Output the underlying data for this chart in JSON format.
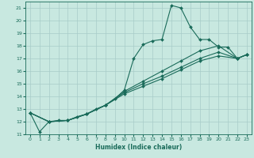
{
  "xlabel": "Humidex (Indice chaleur)",
  "background_color": "#c8e8e0",
  "grid_color": "#a8ccc8",
  "line_color": "#1a6b5a",
  "xlim": [
    -0.5,
    23.5
  ],
  "ylim": [
    11,
    21.5
  ],
  "yticks": [
    11,
    12,
    13,
    14,
    15,
    16,
    17,
    18,
    19,
    20,
    21
  ],
  "xticks": [
    0,
    1,
    2,
    3,
    4,
    5,
    6,
    7,
    8,
    9,
    10,
    11,
    12,
    13,
    14,
    15,
    16,
    17,
    18,
    19,
    20,
    21,
    22,
    23
  ],
  "series": [
    {
      "x": [
        0,
        1,
        2,
        3,
        4,
        5,
        6,
        7,
        8,
        9,
        10,
        11,
        12,
        13,
        14,
        15,
        16,
        17,
        18,
        19,
        20,
        21,
        22,
        23
      ],
      "y": [
        12.7,
        11.2,
        12.0,
        12.1,
        12.1,
        12.4,
        12.6,
        13.0,
        13.3,
        13.8,
        14.5,
        17.0,
        18.1,
        18.4,
        18.5,
        21.2,
        21.0,
        19.5,
        18.5,
        18.5,
        17.9,
        17.9,
        17.0,
        17.3
      ]
    },
    {
      "x": [
        0,
        2,
        4,
        6,
        8,
        10,
        12,
        14,
        16,
        18,
        20,
        22,
        23
      ],
      "y": [
        12.7,
        12.0,
        12.1,
        12.6,
        13.3,
        14.4,
        15.2,
        16.0,
        16.8,
        17.6,
        18.0,
        17.0,
        17.3
      ]
    },
    {
      "x": [
        0,
        2,
        4,
        6,
        8,
        10,
        12,
        14,
        16,
        18,
        20,
        22,
        23
      ],
      "y": [
        12.7,
        12.0,
        12.1,
        12.6,
        13.3,
        14.3,
        15.0,
        15.6,
        16.3,
        17.0,
        17.5,
        17.0,
        17.3
      ]
    },
    {
      "x": [
        0,
        2,
        4,
        6,
        8,
        10,
        12,
        14,
        16,
        18,
        20,
        22,
        23
      ],
      "y": [
        12.7,
        12.0,
        12.1,
        12.6,
        13.3,
        14.2,
        14.8,
        15.4,
        16.1,
        16.8,
        17.2,
        17.0,
        17.3
      ]
    }
  ]
}
